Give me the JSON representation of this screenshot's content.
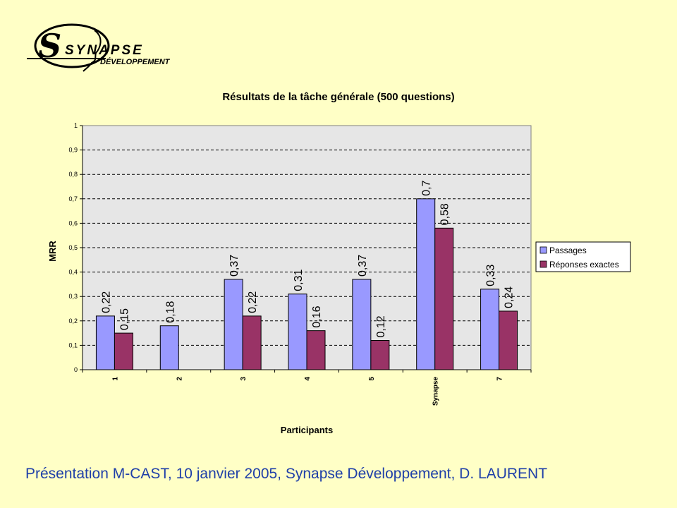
{
  "logo": {
    "brand": "SYNAPSE",
    "sub": "DÉVELOPPEMENT"
  },
  "chart_data": {
    "type": "bar",
    "title": "Résultats de la tâche générale (500 questions)",
    "xlabel": "Participants",
    "ylabel": "MRR",
    "ylim": [
      0,
      1
    ],
    "yticks": [
      "0",
      "0,1",
      "0,2",
      "0,3",
      "0,4",
      "0,5",
      "0,6",
      "0,7",
      "0,8",
      "0,9",
      "1"
    ],
    "categories": [
      "1",
      "2",
      "3",
      "4",
      "5",
      "Synapse",
      "7"
    ],
    "series": [
      {
        "name": "Passages",
        "color": "#9999FF",
        "values": [
          0.22,
          0.18,
          0.37,
          0.31,
          0.37,
          0.7,
          0.33
        ],
        "labels": [
          "0,22",
          "0,18",
          "0,37",
          "0,31",
          "0,37",
          "0,7",
          "0,33"
        ]
      },
      {
        "name": "Réponses exactes",
        "color": "#993366",
        "values": [
          0.15,
          null,
          0.22,
          0.16,
          0.12,
          0.58,
          0.24
        ],
        "labels": [
          "0,15",
          "",
          "0,22",
          "0,16",
          "0,12",
          "0,58",
          "0,24"
        ]
      }
    ],
    "grid": true,
    "legend": "right"
  },
  "footer": {
    "text": "Présentation M-CAST, 10 janvier 2005, Synapse Développement,  D. LAURENT"
  }
}
